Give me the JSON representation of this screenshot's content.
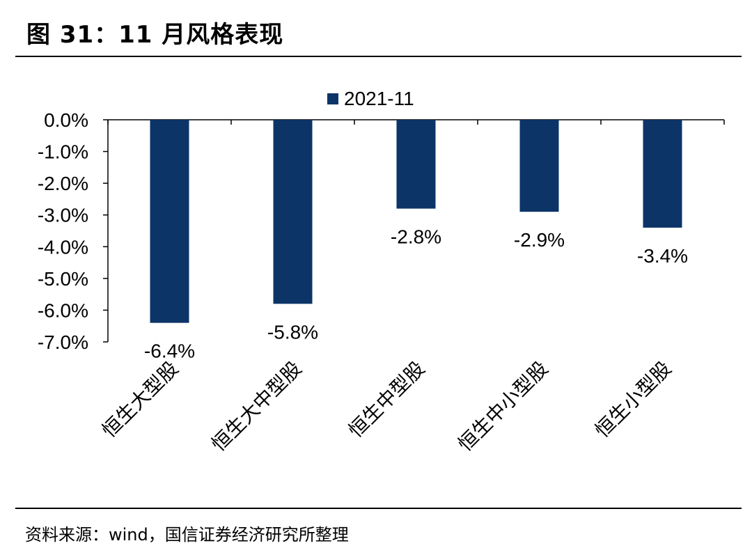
{
  "figure": {
    "title": "图 31：11 月风格表现",
    "source": "资料来源：wind，国信证券经济研究所整理"
  },
  "colors": {
    "bar": "#0c3467",
    "axis": "#000000",
    "text": "#000000"
  },
  "chart_data": {
    "type": "bar",
    "title": "",
    "xlabel": "",
    "ylabel": "",
    "categories": [
      "恒生大型股",
      "恒生大中型股",
      "恒生中型股",
      "恒生中小型股",
      "恒生小型股"
    ],
    "series": [
      {
        "name": "2021-11",
        "values": [
          -6.4,
          -5.8,
          -2.8,
          -2.9,
          -3.4
        ]
      }
    ],
    "data_labels": [
      "-6.4%",
      "-5.8%",
      "-2.8%",
      "-2.9%",
      "-3.4%"
    ],
    "ylim": [
      -7.0,
      0.0
    ],
    "yticks": [
      0,
      -1,
      -2,
      -3,
      -4,
      -5,
      -6,
      -7
    ],
    "ytick_labels": [
      "0.0%",
      "-1.0%",
      "-2.0%",
      "-3.0%",
      "-4.0%",
      "-5.0%",
      "-6.0%",
      "-7.0%"
    ],
    "grid": false,
    "legend_position": "top"
  }
}
